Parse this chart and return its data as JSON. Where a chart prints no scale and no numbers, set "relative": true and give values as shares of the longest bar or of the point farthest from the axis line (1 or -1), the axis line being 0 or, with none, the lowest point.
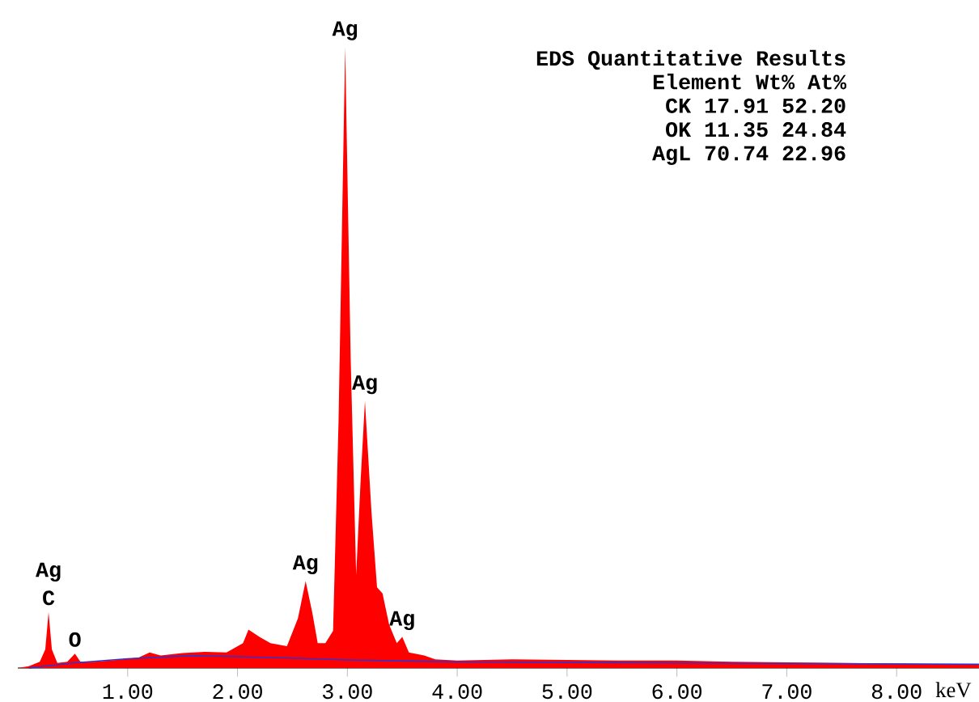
{
  "chart_data": {
    "type": "area",
    "relative": true,
    "tick_labels": "x",
    "xlabel": "keV",
    "xlim": [
      0,
      8.75
    ],
    "xticks": [
      {
        "value": 1,
        "label": "1.00"
      },
      {
        "value": 2,
        "label": "2.00"
      },
      {
        "value": 3,
        "label": "3.00"
      },
      {
        "value": 4,
        "label": "4.00"
      },
      {
        "value": 5,
        "label": "5.00"
      },
      {
        "value": 6,
        "label": "6.00"
      },
      {
        "value": 7,
        "label": "7.00"
      },
      {
        "value": 8,
        "label": "8.00"
      }
    ],
    "series": [
      {
        "color": "#ff0000",
        "x": [
          0.0,
          0.1,
          0.2,
          0.25,
          0.28,
          0.31,
          0.36,
          0.45,
          0.52,
          0.57,
          0.7,
          0.9,
          1.1,
          1.2,
          1.3,
          1.5,
          1.7,
          1.9,
          2.05,
          2.1,
          2.2,
          2.3,
          2.45,
          2.55,
          2.62,
          2.68,
          2.73,
          2.8,
          2.87,
          2.92,
          2.98,
          3.03,
          3.08,
          3.12,
          3.16,
          3.22,
          3.27,
          3.32,
          3.38,
          3.45,
          3.5,
          3.56,
          3.7,
          3.8,
          4.0,
          4.5,
          5.0,
          5.5,
          6.0,
          6.5,
          7.0,
          7.5,
          8.0,
          8.5,
          8.75
        ],
        "values": [
          0.0,
          0.003,
          0.01,
          0.03,
          0.09,
          0.03,
          0.008,
          0.01,
          0.023,
          0.01,
          0.01,
          0.013,
          0.017,
          0.025,
          0.02,
          0.024,
          0.026,
          0.025,
          0.04,
          0.062,
          0.05,
          0.04,
          0.035,
          0.08,
          0.14,
          0.09,
          0.04,
          0.04,
          0.06,
          0.4,
          1.0,
          0.5,
          0.15,
          0.3,
          0.43,
          0.25,
          0.13,
          0.12,
          0.07,
          0.04,
          0.05,
          0.025,
          0.02,
          0.014,
          0.012,
          0.014,
          0.013,
          0.012,
          0.012,
          0.01,
          0.009,
          0.008,
          0.007,
          0.006,
          0.006
        ]
      },
      {
        "type": "line",
        "color": "#3333cc",
        "x": [
          0.1,
          0.5,
          1.0,
          1.6,
          2.5,
          3.0,
          4.0,
          6.0,
          8.75
        ],
        "values": [
          0.0,
          0.008,
          0.015,
          0.02,
          0.016,
          0.013,
          0.01,
          0.008,
          0.006
        ]
      }
    ],
    "annotations": [
      {
        "text": "C",
        "x": 0.28,
        "y": 0.09
      },
      {
        "text": "Ag",
        "x": 0.28,
        "y": 0.09
      },
      {
        "text": "O",
        "x": 0.52,
        "y": 0.023
      },
      {
        "text": "Ag",
        "x": 2.62,
        "y": 0.14
      },
      {
        "text": "Ag",
        "x": 2.98,
        "y": 1.0
      },
      {
        "text": "Ag",
        "x": 3.16,
        "y": 0.43
      },
      {
        "text": "Ag",
        "x": 3.5,
        "y": 0.05
      },
      "EDS Quantitative Results",
      "Element  Wt%  At%",
      "CK  17.91 52.20",
      "OK  11.35 24.84",
      "AgL  70.74 22.96"
    ]
  }
}
